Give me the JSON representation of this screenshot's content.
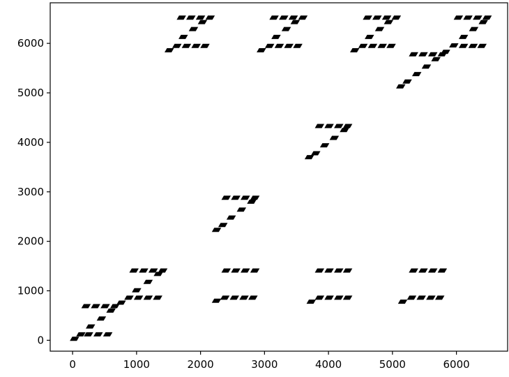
{
  "chart_data": {
    "type": "scatter",
    "title": "",
    "xlabel": "",
    "ylabel": "",
    "xlim": [
      -350,
      6800
    ],
    "ylim": [
      -220,
      6820
    ],
    "grid": false,
    "marker_color": "#000000",
    "x_ticks": [
      0,
      1000,
      2000,
      3000,
      4000,
      5000,
      6000
    ],
    "y_ticks": [
      0,
      1000,
      2000,
      3000,
      4000,
      5000,
      6000
    ],
    "x_tick_labels": [
      "0",
      "1000",
      "2000",
      "3000",
      "4000",
      "5000",
      "6000"
    ],
    "y_tick_labels": [
      "0",
      "1000",
      "2000",
      "3000",
      "4000",
      "5000",
      "6000"
    ],
    "series": [
      {
        "values": [
          {
            "x": 30,
            "y": 30
          },
          {
            "x": 130,
            "y": 120
          },
          {
            "x": 250,
            "y": 120
          },
          {
            "x": 400,
            "y": 120
          },
          {
            "x": 550,
            "y": 120
          },
          {
            "x": 280,
            "y": 280
          },
          {
            "x": 450,
            "y": 440
          },
          {
            "x": 600,
            "y": 600
          },
          {
            "x": 760,
            "y": 760
          },
          {
            "x": 210,
            "y": 690
          },
          {
            "x": 360,
            "y": 690
          },
          {
            "x": 510,
            "y": 690
          },
          {
            "x": 660,
            "y": 690
          },
          {
            "x": 880,
            "y": 860
          },
          {
            "x": 1030,
            "y": 860
          },
          {
            "x": 1180,
            "y": 860
          },
          {
            "x": 1330,
            "y": 860
          },
          {
            "x": 1000,
            "y": 1010
          },
          {
            "x": 1180,
            "y": 1180
          },
          {
            "x": 1340,
            "y": 1340
          },
          {
            "x": 960,
            "y": 1410
          },
          {
            "x": 1110,
            "y": 1410
          },
          {
            "x": 1260,
            "y": 1410
          },
          {
            "x": 1410,
            "y": 1410
          },
          {
            "x": 2250,
            "y": 800
          },
          {
            "x": 2380,
            "y": 860
          },
          {
            "x": 2530,
            "y": 860
          },
          {
            "x": 2680,
            "y": 860
          },
          {
            "x": 2820,
            "y": 860
          },
          {
            "x": 2400,
            "y": 1410
          },
          {
            "x": 2550,
            "y": 1410
          },
          {
            "x": 2700,
            "y": 1410
          },
          {
            "x": 2850,
            "y": 1410
          },
          {
            "x": 3730,
            "y": 780
          },
          {
            "x": 3860,
            "y": 860
          },
          {
            "x": 4010,
            "y": 860
          },
          {
            "x": 4160,
            "y": 860
          },
          {
            "x": 4300,
            "y": 860
          },
          {
            "x": 3860,
            "y": 1410
          },
          {
            "x": 4010,
            "y": 1410
          },
          {
            "x": 4160,
            "y": 1410
          },
          {
            "x": 4300,
            "y": 1410
          },
          {
            "x": 5160,
            "y": 780
          },
          {
            "x": 5300,
            "y": 860
          },
          {
            "x": 5450,
            "y": 860
          },
          {
            "x": 5600,
            "y": 860
          },
          {
            "x": 5740,
            "y": 860
          },
          {
            "x": 5330,
            "y": 1410
          },
          {
            "x": 5480,
            "y": 1410
          },
          {
            "x": 5630,
            "y": 1410
          },
          {
            "x": 5780,
            "y": 1410
          },
          {
            "x": 2250,
            "y": 2230
          },
          {
            "x": 2350,
            "y": 2330
          },
          {
            "x": 2480,
            "y": 2480
          },
          {
            "x": 2640,
            "y": 2640
          },
          {
            "x": 2800,
            "y": 2800
          },
          {
            "x": 2400,
            "y": 2880
          },
          {
            "x": 2550,
            "y": 2880
          },
          {
            "x": 2700,
            "y": 2880
          },
          {
            "x": 2850,
            "y": 2880
          },
          {
            "x": 3700,
            "y": 3700
          },
          {
            "x": 3800,
            "y": 3780
          },
          {
            "x": 3940,
            "y": 3940
          },
          {
            "x": 4090,
            "y": 4090
          },
          {
            "x": 4250,
            "y": 4250
          },
          {
            "x": 3860,
            "y": 4330
          },
          {
            "x": 4010,
            "y": 4330
          },
          {
            "x": 4160,
            "y": 4330
          },
          {
            "x": 4300,
            "y": 4330
          },
          {
            "x": 1510,
            "y": 5860
          },
          {
            "x": 1630,
            "y": 5950
          },
          {
            "x": 1780,
            "y": 5950
          },
          {
            "x": 1930,
            "y": 5950
          },
          {
            "x": 2070,
            "y": 5950
          },
          {
            "x": 1730,
            "y": 6130
          },
          {
            "x": 1890,
            "y": 6290
          },
          {
            "x": 2030,
            "y": 6430
          },
          {
            "x": 1700,
            "y": 6520
          },
          {
            "x": 1850,
            "y": 6520
          },
          {
            "x": 2000,
            "y": 6520
          },
          {
            "x": 2150,
            "y": 6520
          },
          {
            "x": 2950,
            "y": 5860
          },
          {
            "x": 3080,
            "y": 5950
          },
          {
            "x": 3230,
            "y": 5950
          },
          {
            "x": 3380,
            "y": 5950
          },
          {
            "x": 3520,
            "y": 5950
          },
          {
            "x": 3180,
            "y": 6130
          },
          {
            "x": 3340,
            "y": 6290
          },
          {
            "x": 3480,
            "y": 6430
          },
          {
            "x": 3150,
            "y": 6520
          },
          {
            "x": 3300,
            "y": 6520
          },
          {
            "x": 3450,
            "y": 6520
          },
          {
            "x": 3600,
            "y": 6520
          },
          {
            "x": 4410,
            "y": 5860
          },
          {
            "x": 4540,
            "y": 5950
          },
          {
            "x": 4690,
            "y": 5950
          },
          {
            "x": 4840,
            "y": 5950
          },
          {
            "x": 4980,
            "y": 5950
          },
          {
            "x": 4640,
            "y": 6130
          },
          {
            "x": 4800,
            "y": 6290
          },
          {
            "x": 4940,
            "y": 6430
          },
          {
            "x": 4610,
            "y": 6520
          },
          {
            "x": 4760,
            "y": 6520
          },
          {
            "x": 4910,
            "y": 6520
          },
          {
            "x": 5060,
            "y": 6520
          },
          {
            "x": 5130,
            "y": 5130
          },
          {
            "x": 5230,
            "y": 5230
          },
          {
            "x": 5380,
            "y": 5380
          },
          {
            "x": 5530,
            "y": 5530
          },
          {
            "x": 5680,
            "y": 5680
          },
          {
            "x": 5830,
            "y": 5830
          },
          {
            "x": 5960,
            "y": 5960
          },
          {
            "x": 5330,
            "y": 5780
          },
          {
            "x": 5480,
            "y": 5780
          },
          {
            "x": 5630,
            "y": 5780
          },
          {
            "x": 5780,
            "y": 5780
          },
          {
            "x": 6110,
            "y": 5950
          },
          {
            "x": 6260,
            "y": 5950
          },
          {
            "x": 6400,
            "y": 5950
          },
          {
            "x": 6110,
            "y": 6130
          },
          {
            "x": 6270,
            "y": 6290
          },
          {
            "x": 6420,
            "y": 6430
          },
          {
            "x": 6030,
            "y": 6520
          },
          {
            "x": 6180,
            "y": 6520
          },
          {
            "x": 6330,
            "y": 6520
          },
          {
            "x": 6480,
            "y": 6520
          }
        ]
      }
    ]
  }
}
